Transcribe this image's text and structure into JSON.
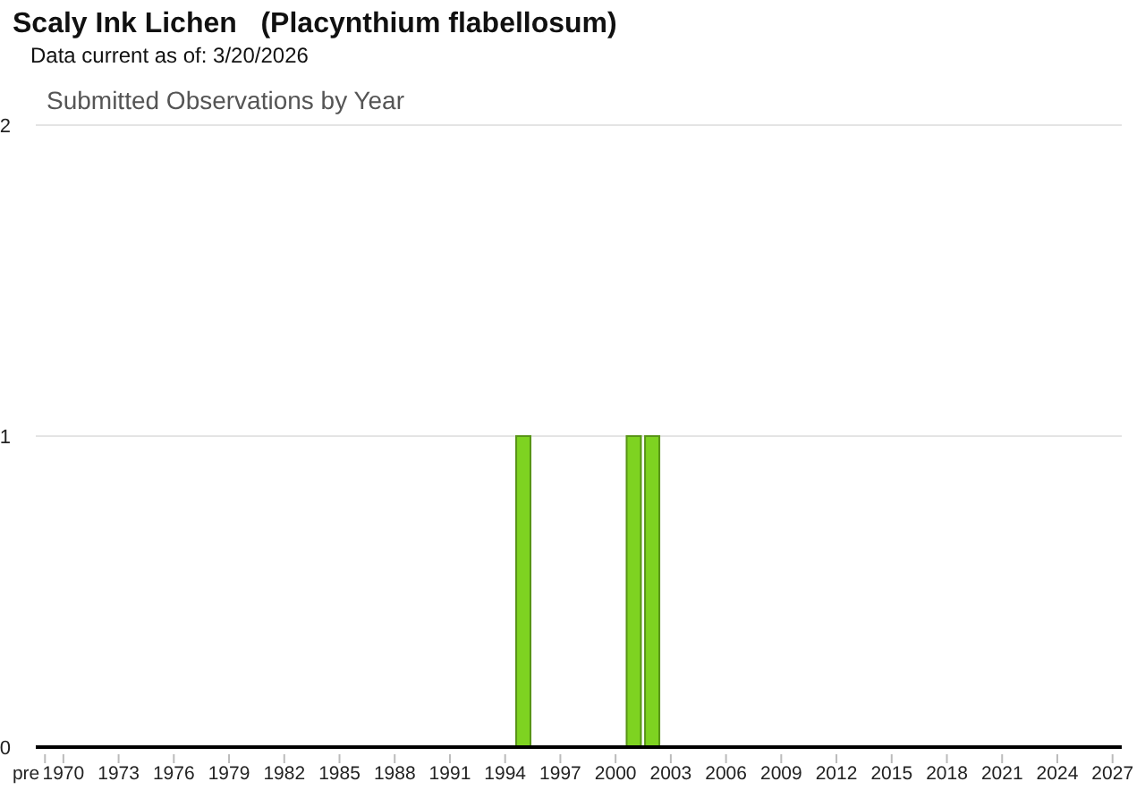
{
  "chart_data": {
    "type": "bar",
    "title": "Scaly Ink Lichen   (Placynthium flabellosum)",
    "subtitle": "Data current as of: 3/20/2026",
    "annotations": [
      "Submitted Observations by Year"
    ],
    "categories": [
      "pre",
      "1970",
      null,
      null,
      "1973",
      null,
      null,
      "1976",
      null,
      null,
      "1979",
      null,
      null,
      "1982",
      null,
      null,
      "1985",
      null,
      null,
      "1988",
      null,
      null,
      "1991",
      null,
      null,
      "1994",
      null,
      null,
      "1997",
      null,
      null,
      "2000",
      null,
      null,
      "2003",
      null,
      null,
      "2006",
      null,
      null,
      "2009",
      null,
      null,
      "2012",
      null,
      null,
      "2015",
      null,
      null,
      "2018",
      null,
      null,
      "2021",
      null,
      null,
      "2024",
      null,
      null,
      "2027"
    ],
    "values": [
      0,
      0,
      0,
      0,
      0,
      0,
      0,
      0,
      0,
      0,
      0,
      0,
      0,
      0,
      0,
      0,
      0,
      0,
      0,
      0,
      0,
      0,
      0,
      0,
      0,
      0,
      1,
      0,
      0,
      0,
      0,
      0,
      1,
      1,
      0,
      0,
      0,
      0,
      0,
      0,
      0,
      0,
      0,
      0,
      0,
      0,
      0,
      0,
      0,
      0,
      0,
      0,
      0,
      0,
      0,
      0,
      0,
      0,
      0
    ],
    "color": "#7ed321",
    "ylim": [
      0,
      2
    ],
    "yticks": [
      0,
      1,
      2
    ],
    "grid": "y",
    "legend": false
  }
}
